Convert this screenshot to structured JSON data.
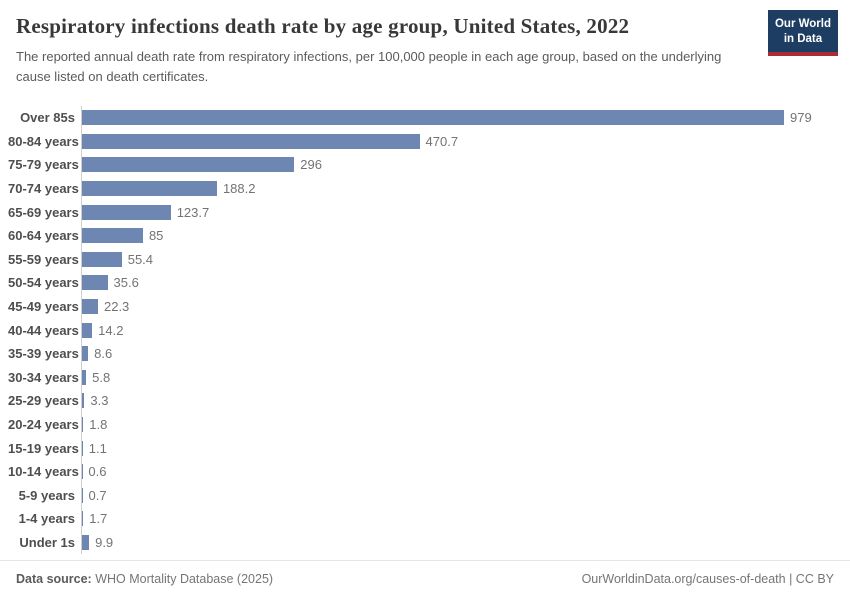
{
  "header": {
    "title": "Respiratory infections death rate by age group, United States, 2022",
    "subtitle": "The reported annual death rate from respiratory infections, per 100,000 people in each age group, based on the underlying cause listed on death certificates.",
    "logo": {
      "line1": "Our World",
      "line2": "in Data"
    }
  },
  "chart_data": {
    "type": "bar",
    "orientation": "horizontal",
    "title": "Respiratory infections death rate by age group, United States, 2022",
    "xlabel": "",
    "ylabel": "",
    "xlim": [
      0,
      979
    ],
    "grid": false,
    "legend": false,
    "categories": [
      "Over 85s",
      "80-84 years",
      "75-79 years",
      "70-74 years",
      "65-69 years",
      "60-64 years",
      "55-59 years",
      "50-54 years",
      "45-49 years",
      "40-44 years",
      "35-39 years",
      "30-34 years",
      "25-29 years",
      "20-24 years",
      "15-19 years",
      "10-14 years",
      "5-9 years",
      "1-4 years",
      "Under 1s"
    ],
    "values": [
      979,
      470.7,
      296,
      188.2,
      123.7,
      85,
      55.4,
      35.6,
      22.3,
      14.2,
      8.6,
      5.8,
      3.3,
      1.8,
      1.1,
      0.6,
      0.7,
      1.7,
      9.9
    ],
    "value_labels": [
      "979",
      "470.7",
      "296",
      "188.2",
      "123.7",
      "85",
      "55.4",
      "35.6",
      "22.3",
      "14.2",
      "8.6",
      "5.8",
      "3.3",
      "1.8",
      "1.1",
      "0.6",
      "0.7",
      "1.7",
      "9.9"
    ]
  },
  "footer": {
    "datasource_label": "Data source:",
    "datasource_value": "WHO Mortality Database (2025)",
    "credit": "OurWorldinData.org/causes-of-death | CC BY"
  },
  "colors": {
    "bar": "#6e87b2",
    "logo_background": "#1d3d63",
    "logo_stripe": "#a92d33",
    "title_text": "#383838",
    "axis_line": "#cfcfcf"
  }
}
